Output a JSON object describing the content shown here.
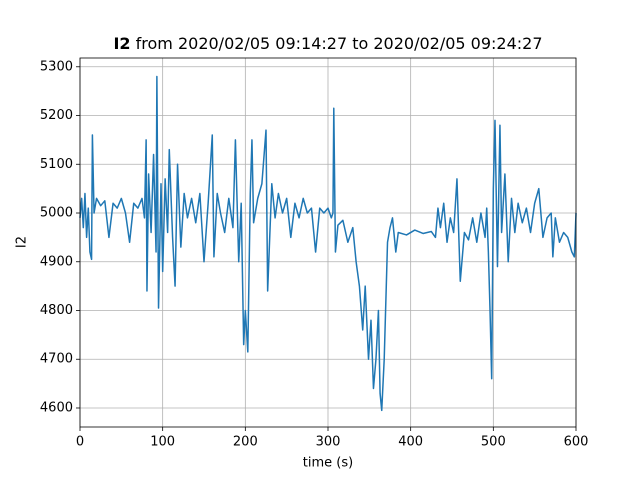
{
  "chart_data": {
    "type": "line",
    "title": {
      "name": "I2",
      "text": "from 2020/02/05 09:14:27 to 2020/02/05 09:24:27"
    },
    "xlabel": "time (s)",
    "ylabel": "I2",
    "xlim": [
      0,
      600
    ],
    "xticks": [
      0,
      100,
      200,
      300,
      400,
      500,
      600
    ],
    "ylim": [
      4561,
      5318
    ],
    "yticks": [
      4600,
      4700,
      4800,
      4900,
      5000,
      5100,
      5200,
      5300
    ],
    "grid": true,
    "series": [
      {
        "color": "#1f77b4",
        "x": [
          0,
          2,
          4,
          6,
          8,
          10,
          12,
          14,
          15,
          17,
          20,
          25,
          30,
          35,
          40,
          45,
          50,
          55,
          60,
          65,
          70,
          75,
          78,
          80,
          81,
          83,
          86,
          89,
          92,
          93,
          95,
          98,
          100,
          103,
          106,
          108,
          112,
          115,
          118,
          122,
          126,
          130,
          135,
          140,
          145,
          150,
          155,
          160,
          162,
          166,
          170,
          175,
          180,
          185,
          188,
          192,
          195,
          198,
          200,
          203,
          206,
          208,
          210,
          215,
          220,
          225,
          227,
          232,
          236,
          240,
          245,
          250,
          255,
          260,
          265,
          270,
          275,
          280,
          285,
          290,
          295,
          300,
          304,
          306,
          307,
          309,
          312,
          318,
          324,
          330,
          334,
          338,
          342,
          345,
          349,
          352,
          355,
          358,
          361,
          363,
          365,
          368,
          372,
          375,
          378,
          382,
          385,
          395,
          405,
          415,
          425,
          430,
          433,
          436,
          440,
          444,
          448,
          452,
          456,
          460,
          465,
          470,
          475,
          480,
          485,
          490,
          492,
          494,
          496,
          498,
          500,
          502,
          505,
          508,
          510,
          514,
          518,
          522,
          526,
          530,
          535,
          540,
          545,
          550,
          555,
          560,
          565,
          570,
          572,
          575,
          580,
          585,
          590,
          595,
          598,
          600
        ],
        "values": [
          4990,
          5030,
          4970,
          5040,
          4950,
          5010,
          4920,
          4905,
          5160,
          5000,
          5030,
          5015,
          5025,
          4950,
          5020,
          5010,
          5030,
          5000,
          4940,
          5020,
          5010,
          5030,
          4990,
          5150,
          4840,
          5080,
          4960,
          5120,
          4920,
          5280,
          4805,
          5060,
          4880,
          5070,
          4960,
          5130,
          4950,
          4850,
          5100,
          4930,
          5040,
          4990,
          5030,
          4980,
          5040,
          4900,
          5020,
          5160,
          4910,
          5040,
          5000,
          4960,
          5030,
          4970,
          5150,
          4900,
          5020,
          4730,
          4800,
          4715,
          5040,
          5150,
          4980,
          5030,
          5060,
          5170,
          4840,
          5060,
          4990,
          5040,
          5000,
          5030,
          4950,
          5020,
          4990,
          5030,
          5000,
          5010,
          4920,
          5010,
          5000,
          5010,
          4990,
          5000,
          5215,
          4920,
          4975,
          4985,
          4940,
          4970,
          4900,
          4850,
          4760,
          4850,
          4700,
          4780,
          4640,
          4700,
          4800,
          4630,
          4595,
          4700,
          4940,
          4970,
          4990,
          4920,
          4960,
          4955,
          4965,
          4958,
          4962,
          4950,
          5010,
          4970,
          5020,
          4940,
          4990,
          4960,
          5070,
          4860,
          4960,
          4945,
          4990,
          4940,
          5000,
          4950,
          5010,
          4920,
          4800,
          4660,
          5050,
          5190,
          4890,
          5180,
          4960,
          5080,
          4900,
          5030,
          4960,
          5020,
          4980,
          5010,
          4960,
          5020,
          5050,
          4950,
          4990,
          5000,
          4910,
          4990,
          4940,
          4960,
          4950,
          4920,
          4910,
          5000
        ]
      }
    ]
  }
}
